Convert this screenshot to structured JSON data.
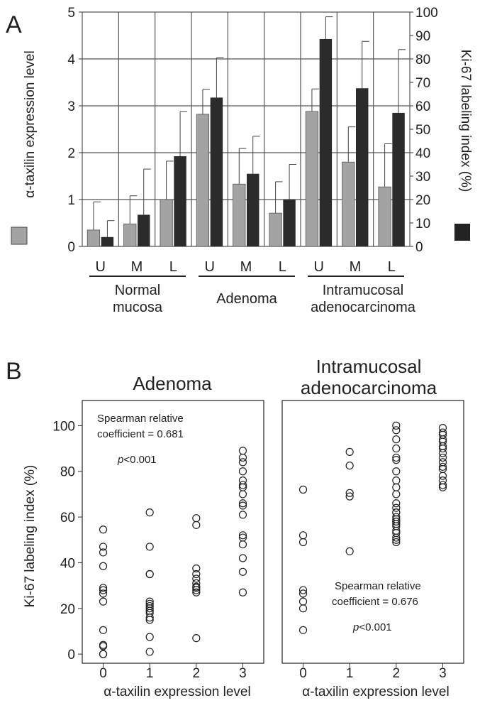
{
  "panel_a": {
    "label": "A",
    "groups": [
      "Normal\nmucosa",
      "Adenoma",
      "Intramucosal\nadenocarcinoma"
    ],
    "legend_left": "α-taxilin expression level",
    "legend_right": "Ki-67 labeling index (%)",
    "colors": {
      "taxilin": "#a3a3a3",
      "ki67": "#2b2b2b",
      "grid": "#555555"
    }
  },
  "panel_b": {
    "label": "B",
    "adenoma": {
      "title": "Adenoma",
      "stat_line1": "Spearman relative",
      "stat_line2": "coefficient = 0.681",
      "pvalue_p": "p",
      "pvalue_rest": "<0.001"
    },
    "carcinoma": {
      "title_line1": "Intramucosal",
      "title_line2": "adenocarcinoma",
      "stat_line1": "Spearman relative",
      "stat_line2": "coefficient = 0.676",
      "pvalue_p": "p",
      "pvalue_rest": "<0.001"
    }
  },
  "chart_data": [
    {
      "type": "bar",
      "categories": [
        "U",
        "M",
        "L",
        "U",
        "M",
        "L",
        "U",
        "M",
        "L"
      ],
      "groups": [
        {
          "name": "Normal\nmucosa",
          "categories": [
            "U",
            "M",
            "L"
          ]
        },
        {
          "name": "Adenoma",
          "categories": [
            "U",
            "M",
            "L"
          ]
        },
        {
          "name": "Intramucosal\nadenocarcinoma",
          "categories": [
            "U",
            "M",
            "L"
          ]
        }
      ],
      "series": [
        {
          "name": "α-taxilin expression level",
          "axis": "left",
          "values": [
            0.35,
            0.48,
            1.0,
            2.82,
            1.33,
            0.71,
            2.88,
            1.8,
            1.27
          ],
          "error": [
            0.6,
            0.6,
            0.82,
            0.53,
            0.76,
            0.67,
            0.48,
            0.75,
            0.92
          ]
        },
        {
          "name": "Ki-67 labeling index (%)",
          "axis": "right",
          "values": [
            4,
            13.5,
            38.5,
            63.5,
            31,
            20,
            88.5,
            67.5,
            57
          ],
          "error": [
            7,
            19.5,
            19,
            17,
            16,
            15,
            9.5,
            20,
            27
          ]
        }
      ],
      "ylim_left": [
        0,
        5
      ],
      "yticks_left": [
        0,
        1,
        2,
        3,
        4,
        5
      ],
      "ylim_right": [
        0,
        100
      ],
      "yticks_right": [
        0,
        10,
        20,
        30,
        40,
        50,
        60,
        70,
        80,
        90,
        100
      ],
      "ylabel_left": "α-taxilin expression level",
      "ylabel_right": "Ki-67 labeling index (%)",
      "grid": true
    },
    {
      "type": "scatter",
      "title": "Adenoma",
      "xlabel": "α-taxilin expression level",
      "ylabel": "Ki-67 labeling index (%)",
      "xlim": [
        -0.45,
        3.45
      ],
      "ylim": [
        -4,
        111
      ],
      "xticks": [
        0,
        1,
        2,
        3
      ],
      "yticks": [
        0,
        20,
        40,
        60,
        80,
        100
      ],
      "series": [
        {
          "x": [
            0,
            0,
            0,
            0,
            0,
            0,
            0,
            0,
            0,
            0,
            0,
            0,
            0
          ],
          "y": [
            54.5,
            47,
            44.5,
            38.5,
            29,
            28,
            26.5,
            23,
            10.5,
            4,
            3.5,
            0,
            0
          ]
        },
        {
          "x": [
            1,
            1,
            1,
            1,
            1,
            1,
            1,
            1,
            1,
            1,
            1,
            1,
            1,
            1
          ],
          "y": [
            62,
            47,
            35,
            35,
            23,
            22,
            21,
            20,
            19,
            18,
            16,
            15,
            7.5,
            1
          ]
        },
        {
          "x": [
            2,
            2,
            2,
            2,
            2,
            2,
            2,
            2,
            2,
            2,
            2
          ],
          "y": [
            59.5,
            56.5,
            37.5,
            35,
            33,
            31,
            29.5,
            29,
            28,
            27,
            7
          ]
        },
        {
          "x": [
            3,
            3,
            3,
            3,
            3,
            3,
            3,
            3,
            3,
            3,
            3,
            3,
            3,
            3,
            3,
            3,
            3
          ],
          "y": [
            89,
            86,
            84,
            80,
            76,
            74,
            73,
            70,
            66,
            65,
            61,
            52,
            51,
            48,
            42,
            36,
            27
          ]
        }
      ]
    },
    {
      "type": "scatter",
      "title": "Intramucosal adenocarcinoma",
      "xlabel": "α-taxilin expression level",
      "xlim": [
        -0.45,
        3.45
      ],
      "ylim": [
        -4,
        111
      ],
      "xticks": [
        0,
        1,
        2,
        3
      ],
      "series": [
        {
          "x": [
            0,
            0,
            0,
            0,
            0,
            0,
            0,
            0
          ],
          "y": [
            72,
            52,
            49,
            28,
            26.5,
            23,
            20,
            10.5
          ]
        },
        {
          "x": [
            1,
            1,
            1,
            1,
            1
          ],
          "y": [
            88.5,
            82.5,
            70.5,
            69,
            45
          ]
        },
        {
          "x": [
            2,
            2,
            2,
            2,
            2,
            2,
            2,
            2,
            2,
            2,
            2,
            2,
            2,
            2,
            2,
            2,
            2,
            2,
            2,
            2,
            2,
            2,
            2,
            2,
            2
          ],
          "y": [
            100,
            98,
            94,
            90,
            86,
            85,
            80,
            76,
            73,
            70,
            66,
            62,
            60,
            59,
            58,
            57,
            56,
            54,
            53,
            51,
            50,
            49,
            62,
            64,
            58
          ]
        },
        {
          "x": [
            3,
            3,
            3,
            3,
            3,
            3,
            3,
            3,
            3,
            3,
            3,
            3,
            3,
            3,
            3,
            3
          ],
          "y": [
            99,
            97,
            96,
            94,
            93,
            91,
            90,
            88,
            86,
            84,
            82,
            81,
            78,
            76,
            74,
            73
          ]
        }
      ]
    }
  ]
}
